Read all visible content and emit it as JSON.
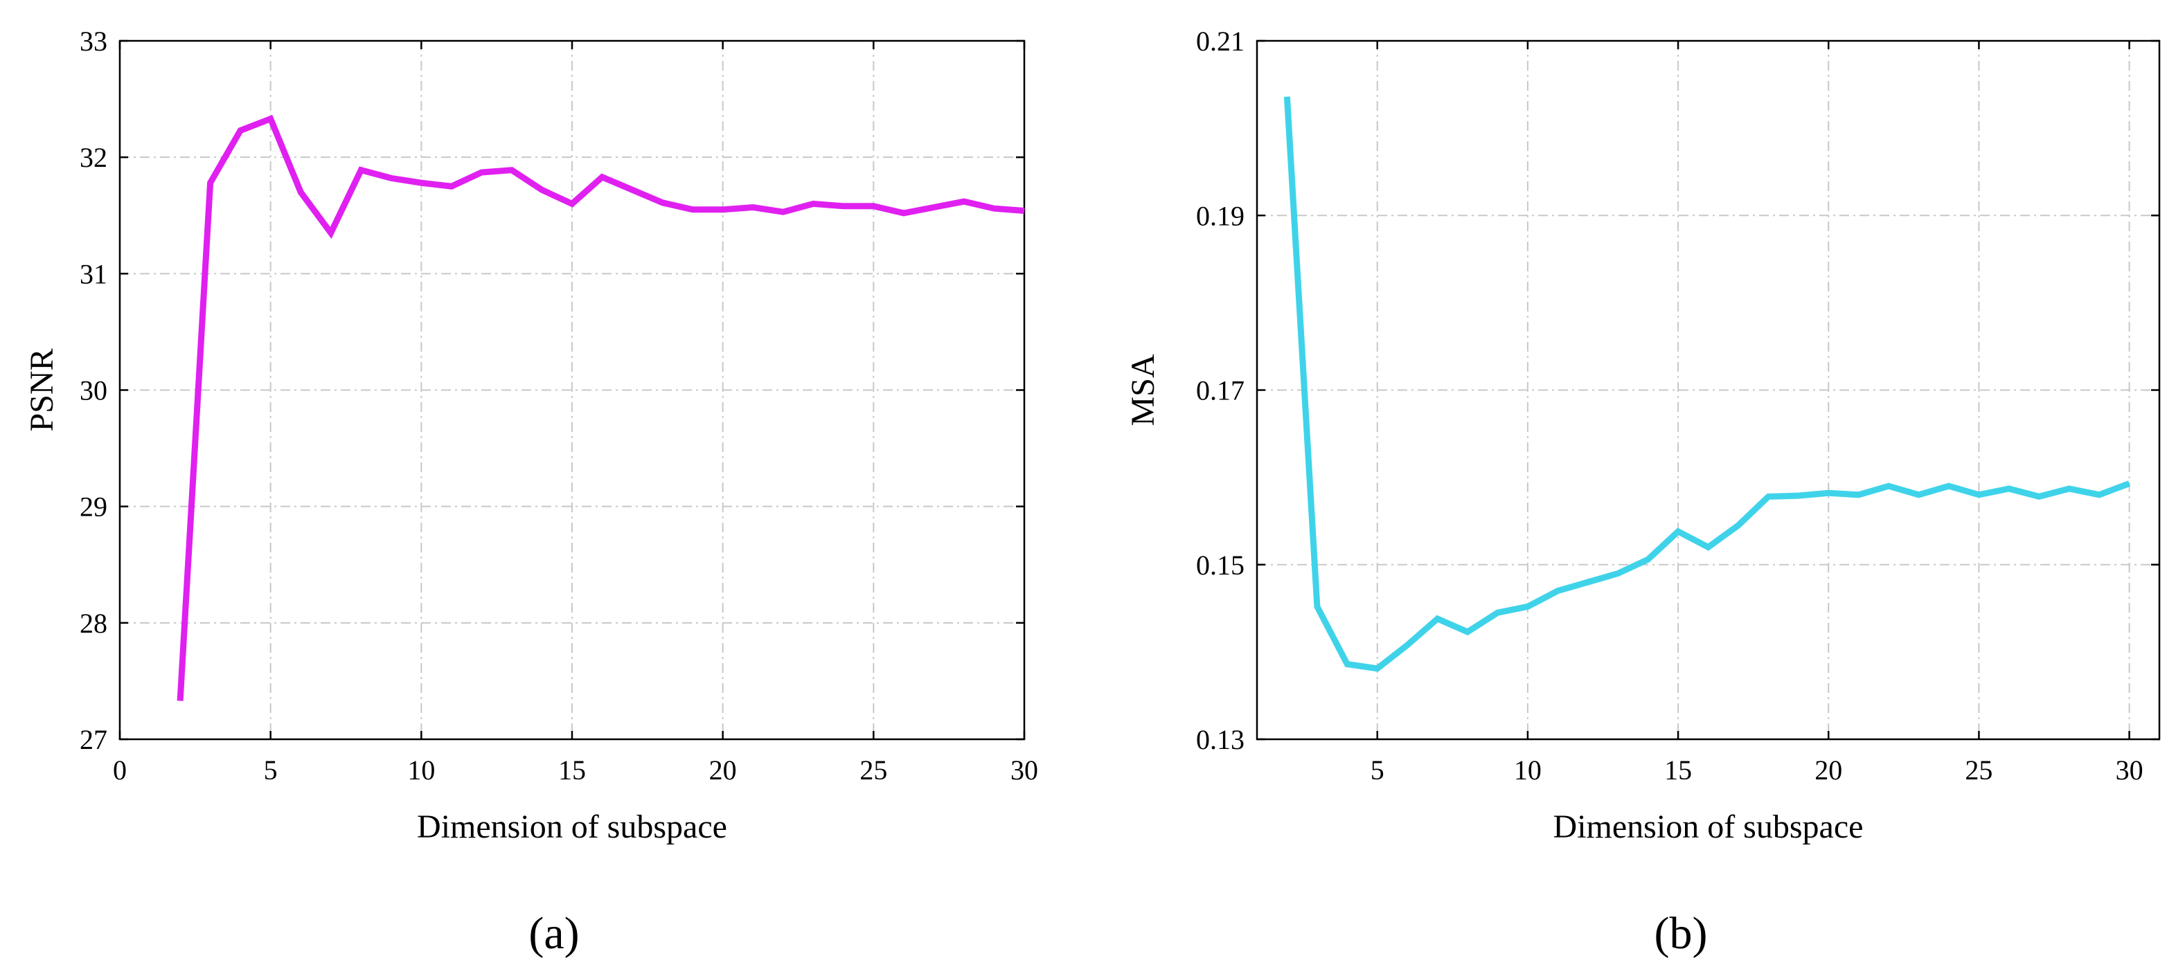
{
  "chart_data": [
    {
      "type": "line",
      "caption": "(a)",
      "xlabel": "Dimension of subspace",
      "ylabel": "PSNR",
      "xlim": [
        0,
        30
      ],
      "ylim": [
        27,
        33
      ],
      "xticks": [
        0,
        5,
        10,
        15,
        20,
        25,
        30
      ],
      "xtick_labels": [
        "0",
        "5",
        "10",
        "15",
        "20",
        "25",
        "30"
      ],
      "yticks": [
        27,
        28,
        29,
        30,
        31,
        32,
        33
      ],
      "ytick_labels": [
        "27",
        "28",
        "29",
        "30",
        "31",
        "32",
        "33"
      ],
      "grid": true,
      "color": "#e020f0",
      "series": [
        {
          "name": "PSNR",
          "x": [
            2,
            3,
            4,
            5,
            6,
            7,
            8,
            9,
            10,
            11,
            12,
            13,
            14,
            15,
            16,
            17,
            18,
            19,
            20,
            21,
            22,
            23,
            24,
            25,
            26,
            27,
            28,
            29,
            30
          ],
          "values": [
            27.33,
            31.78,
            32.23,
            32.33,
            31.7,
            31.35,
            31.89,
            31.82,
            31.78,
            31.75,
            31.87,
            31.89,
            31.72,
            31.6,
            31.83,
            31.72,
            31.61,
            31.55,
            31.55,
            31.57,
            31.53,
            31.6,
            31.58,
            31.58,
            31.52,
            31.57,
            31.62,
            31.56,
            31.54
          ]
        }
      ]
    },
    {
      "type": "line",
      "caption": "(b)",
      "xlabel": "Dimension of subspace",
      "ylabel": "MSA",
      "xlim": [
        1,
        31
      ],
      "ylim": [
        0.13,
        0.21
      ],
      "xticks": [
        5,
        10,
        15,
        20,
        25,
        30
      ],
      "xtick_labels": [
        "5",
        "10",
        "15",
        "20",
        "25",
        "30"
      ],
      "yticks": [
        0.13,
        0.15,
        0.17,
        0.19,
        0.21
      ],
      "ytick_labels": [
        "0.13",
        "0.15",
        "0.17",
        "0.19",
        "0.21"
      ],
      "grid": true,
      "color": "#3fd3ea",
      "series": [
        {
          "name": "MSA",
          "x": [
            2,
            3,
            4,
            5,
            6,
            7,
            8,
            9,
            10,
            11,
            12,
            13,
            14,
            15,
            16,
            17,
            18,
            19,
            20,
            21,
            22,
            23,
            24,
            25,
            26,
            27,
            28,
            29,
            30
          ],
          "values": [
            0.2036,
            0.1452,
            0.1386,
            0.1381,
            0.1408,
            0.1438,
            0.1423,
            0.1445,
            0.1452,
            0.147,
            0.148,
            0.149,
            0.1506,
            0.1538,
            0.152,
            0.1545,
            0.1578,
            0.1579,
            0.1582,
            0.158,
            0.159,
            0.158,
            0.159,
            0.158,
            0.1587,
            0.1578,
            0.1587,
            0.158,
            0.1593
          ]
        }
      ]
    }
  ]
}
